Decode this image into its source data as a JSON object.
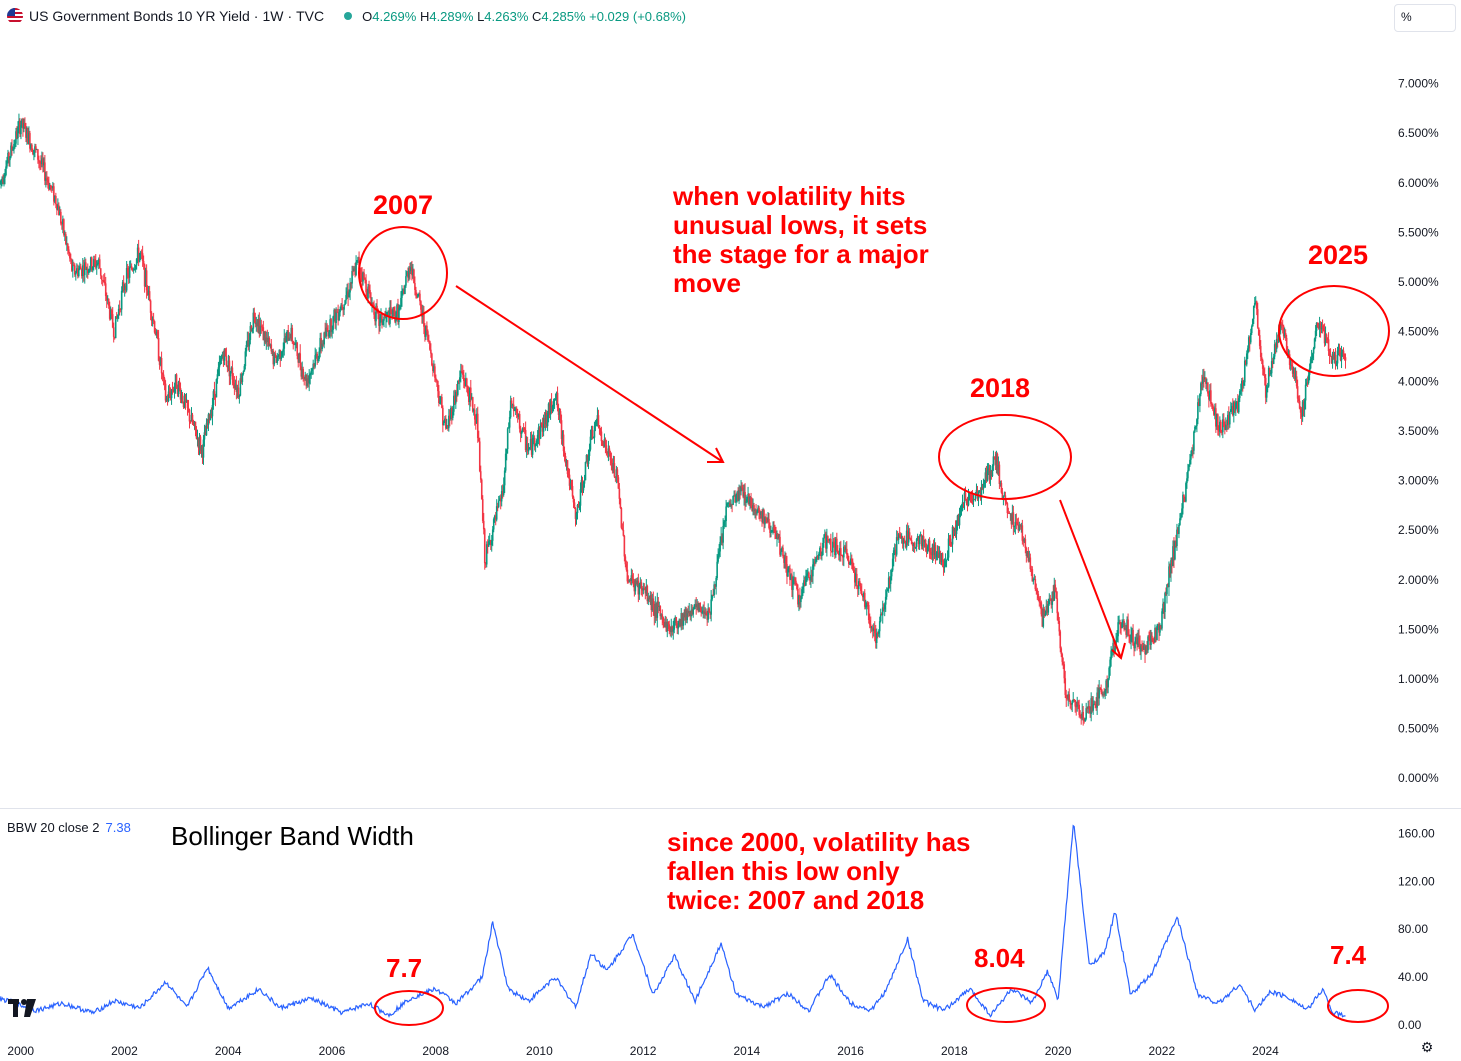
{
  "header": {
    "title": "US Government Bonds 10 YR Yield",
    "interval": "1W",
    "source": "TVC",
    "sep": "·",
    "ohlc": {
      "o_label": "O",
      "o": "4.269%",
      "h_label": "H",
      "h": "4.289%",
      "l_label": "L",
      "l": "4.263%",
      "c_label": "C",
      "c": "4.285%",
      "change": "+0.029 (+0.68%)"
    }
  },
  "unit_label": "%",
  "indicator": {
    "label": "BBW 20 close 2",
    "value": "7.38"
  },
  "logo": "TV",
  "settings_icon": "⚙",
  "colors": {
    "up": "#089981",
    "down": "#f23645",
    "line": "#2962ff",
    "annotation": "#ff0000"
  },
  "chart_data": [
    {
      "type": "candlestick",
      "title": "US Government Bonds 10 YR Yield · 1W · TVC",
      "ylabel": "%",
      "ylim": [
        -0.3,
        7.5
      ],
      "xlim": [
        1999.6,
        2026.4
      ],
      "y_ticks": [
        "7.000%",
        "6.500%",
        "6.000%",
        "5.500%",
        "5.000%",
        "4.500%",
        "4.000%",
        "3.500%",
        "3.000%",
        "2.500%",
        "2.000%",
        "1.500%",
        "1.000%",
        "0.500%",
        "0.000%"
      ],
      "y_tick_values": [
        7.0,
        6.5,
        6.0,
        5.5,
        5.0,
        4.5,
        4.0,
        3.5,
        3.0,
        2.5,
        2.0,
        1.5,
        1.0,
        0.5,
        0.0
      ],
      "x_ticks": [
        "2000",
        "2002",
        "2004",
        "2006",
        "2008",
        "2010",
        "2012",
        "2014",
        "2016",
        "2018",
        "2020",
        "2022",
        "2024"
      ],
      "x_tick_values": [
        2000,
        2002,
        2004,
        2006,
        2008,
        2010,
        2012,
        2014,
        2016,
        2018,
        2020,
        2022,
        2024
      ],
      "anchors": [
        [
          1999.6,
          6.0
        ],
        [
          2000.0,
          6.6
        ],
        [
          2000.3,
          6.3
        ],
        [
          2000.7,
          5.8
        ],
        [
          2001.0,
          5.1
        ],
        [
          2001.5,
          5.2
        ],
        [
          2001.8,
          4.5
        ],
        [
          2002.0,
          5.0
        ],
        [
          2002.3,
          5.3
        ],
        [
          2002.6,
          4.5
        ],
        [
          2002.8,
          3.8
        ],
        [
          2003.0,
          4.0
        ],
        [
          2003.5,
          3.3
        ],
        [
          2003.9,
          4.3
        ],
        [
          2004.2,
          3.9
        ],
        [
          2004.5,
          4.7
        ],
        [
          2004.9,
          4.2
        ],
        [
          2005.2,
          4.5
        ],
        [
          2005.5,
          4.0
        ],
        [
          2005.9,
          4.5
        ],
        [
          2006.3,
          4.9
        ],
        [
          2006.5,
          5.2
        ],
        [
          2006.9,
          4.6
        ],
        [
          2007.3,
          4.7
        ],
        [
          2007.5,
          5.2
        ],
        [
          2007.9,
          4.3
        ],
        [
          2008.2,
          3.5
        ],
        [
          2008.5,
          4.1
        ],
        [
          2008.8,
          3.6
        ],
        [
          2008.95,
          2.2
        ],
        [
          2009.3,
          2.9
        ],
        [
          2009.45,
          3.8
        ],
        [
          2009.8,
          3.3
        ],
        [
          2010.2,
          3.7
        ],
        [
          2010.3,
          3.9
        ],
        [
          2010.7,
          2.6
        ],
        [
          2010.95,
          3.3
        ],
        [
          2011.1,
          3.6
        ],
        [
          2011.5,
          3.0
        ],
        [
          2011.7,
          2.0
        ],
        [
          2012.0,
          1.9
        ],
        [
          2012.5,
          1.5
        ],
        [
          2012.9,
          1.7
        ],
        [
          2013.3,
          1.7
        ],
        [
          2013.6,
          2.7
        ],
        [
          2013.9,
          2.9
        ],
        [
          2014.5,
          2.5
        ],
        [
          2015.0,
          1.8
        ],
        [
          2015.5,
          2.4
        ],
        [
          2016.0,
          2.2
        ],
        [
          2016.5,
          1.4
        ],
        [
          2016.9,
          2.4
        ],
        [
          2017.3,
          2.4
        ],
        [
          2017.8,
          2.2
        ],
        [
          2018.2,
          2.8
        ],
        [
          2018.5,
          2.9
        ],
        [
          2018.8,
          3.2
        ],
        [
          2019.0,
          2.7
        ],
        [
          2019.3,
          2.5
        ],
        [
          2019.7,
          1.6
        ],
        [
          2019.95,
          1.9
        ],
        [
          2020.15,
          0.8
        ],
        [
          2020.5,
          0.65
        ],
        [
          2020.9,
          0.9
        ],
        [
          2021.2,
          1.6
        ],
        [
          2021.6,
          1.3
        ],
        [
          2021.95,
          1.5
        ],
        [
          2022.3,
          2.5
        ],
        [
          2022.5,
          3.0
        ],
        [
          2022.8,
          4.1
        ],
        [
          2023.1,
          3.5
        ],
        [
          2023.5,
          3.8
        ],
        [
          2023.8,
          4.8
        ],
        [
          2024.0,
          3.9
        ],
        [
          2024.3,
          4.6
        ],
        [
          2024.7,
          3.7
        ],
        [
          2025.0,
          4.6
        ],
        [
          2025.3,
          4.2
        ],
        [
          2025.55,
          4.3
        ]
      ]
    },
    {
      "type": "line",
      "title": "Bollinger Band Width",
      "series_name": "BBW 20 close 2",
      "ylim": [
        -6,
        178
      ],
      "y_ticks": [
        "160.00",
        "120.00",
        "80.00",
        "40.00",
        "0.00"
      ],
      "y_tick_values": [
        160,
        120,
        80,
        40,
        0
      ],
      "anchors": [
        [
          1999.6,
          22
        ],
        [
          2000.3,
          12
        ],
        [
          2000.8,
          18
        ],
        [
          2001.4,
          10
        ],
        [
          2001.8,
          20
        ],
        [
          2002.3,
          14
        ],
        [
          2002.8,
          36
        ],
        [
          2003.2,
          14
        ],
        [
          2003.6,
          48
        ],
        [
          2004.0,
          14
        ],
        [
          2004.6,
          30
        ],
        [
          2005.0,
          14
        ],
        [
          2005.6,
          22
        ],
        [
          2006.2,
          10
        ],
        [
          2006.7,
          18
        ],
        [
          2007.1,
          8
        ],
        [
          2007.5,
          22
        ],
        [
          2008.0,
          30
        ],
        [
          2008.4,
          18
        ],
        [
          2008.9,
          40
        ],
        [
          2009.1,
          86
        ],
        [
          2009.4,
          30
        ],
        [
          2009.8,
          20
        ],
        [
          2010.3,
          40
        ],
        [
          2010.7,
          15
        ],
        [
          2011.0,
          60
        ],
        [
          2011.3,
          45
        ],
        [
          2011.8,
          76
        ],
        [
          2012.2,
          25
        ],
        [
          2012.6,
          58
        ],
        [
          2013.0,
          20
        ],
        [
          2013.5,
          68
        ],
        [
          2013.8,
          25
        ],
        [
          2014.3,
          15
        ],
        [
          2014.8,
          26
        ],
        [
          2015.2,
          12
        ],
        [
          2015.6,
          42
        ],
        [
          2016.0,
          18
        ],
        [
          2016.4,
          12
        ],
        [
          2016.7,
          30
        ],
        [
          2017.1,
          72
        ],
        [
          2017.4,
          20
        ],
        [
          2017.8,
          12
        ],
        [
          2018.3,
          30
        ],
        [
          2018.7,
          8
        ],
        [
          2019.1,
          30
        ],
        [
          2019.5,
          18
        ],
        [
          2019.8,
          45
        ],
        [
          2020.0,
          20
        ],
        [
          2020.3,
          170
        ],
        [
          2020.6,
          50
        ],
        [
          2020.9,
          60
        ],
        [
          2021.1,
          95
        ],
        [
          2021.4,
          25
        ],
        [
          2021.8,
          42
        ],
        [
          2022.3,
          90
        ],
        [
          2022.7,
          25
        ],
        [
          2023.1,
          18
        ],
        [
          2023.5,
          34
        ],
        [
          2023.8,
          12
        ],
        [
          2024.1,
          28
        ],
        [
          2024.5,
          22
        ],
        [
          2024.8,
          12
        ],
        [
          2025.1,
          30
        ],
        [
          2025.3,
          10
        ],
        [
          2025.55,
          7.4
        ]
      ]
    }
  ],
  "annotations": {
    "label_2007": "2007",
    "label_2018": "2018",
    "label_2025": "2025",
    "volatility_note": [
      "when volatility hits",
      "unusual lows, it sets",
      "the stage for a major",
      "move"
    ],
    "bbw_title": "Bollinger Band Width",
    "since_note": [
      "since 2000, volatility has",
      "fallen this low only",
      "twice: 2007 and 2018"
    ],
    "bbw_2007": "7.7",
    "bbw_2018": "8.04",
    "bbw_2025": "7.4"
  }
}
